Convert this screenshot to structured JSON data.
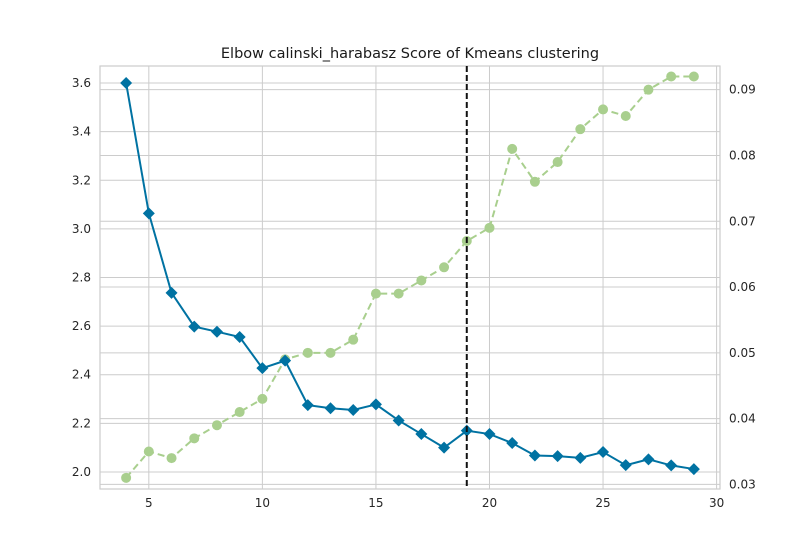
{
  "chart_data": {
    "type": "line",
    "title": "Elbow calinski_harabasz Score of Kmeans clustering",
    "xlabel": "",
    "ylabel": "",
    "y2label": "",
    "xlim": [
      2.85,
      30.15
    ],
    "ylim": [
      1.93,
      3.67
    ],
    "y2lim": [
      0.0293,
      0.0936
    ],
    "x_ticks": [
      5,
      10,
      15,
      20,
      25,
      30
    ],
    "y_ticks": [
      2.0,
      2.2,
      2.4,
      2.6,
      2.8,
      3.0,
      3.2,
      3.4,
      3.6
    ],
    "y2_ticks": [
      0.03,
      0.04,
      0.05,
      0.06,
      0.07,
      0.08,
      0.09
    ],
    "grid": true,
    "elbow_x": 19,
    "colors": {
      "score": "#0072a2",
      "fit_time": "#a9cf8e",
      "elbow": "#111111",
      "grid": "#cccccc",
      "frame": "#cccccc",
      "text": "#262626"
    },
    "x": [
      4,
      5,
      6,
      7,
      8,
      9,
      10,
      11,
      12,
      13,
      14,
      15,
      16,
      17,
      18,
      19,
      20,
      21,
      22,
      23,
      24,
      25,
      26,
      27,
      28,
      29
    ],
    "series": [
      {
        "axis": "left",
        "marker": "diamond",
        "style": "solid",
        "values": [
          3.6,
          3.064,
          2.737,
          2.598,
          2.577,
          2.555,
          2.427,
          2.458,
          2.275,
          2.262,
          2.255,
          2.278,
          2.212,
          2.156,
          2.1,
          2.17,
          2.156,
          2.119,
          2.068,
          2.065,
          2.058,
          2.082,
          2.028,
          2.052,
          2.027,
          2.012
        ]
      },
      {
        "axis": "right",
        "marker": "circle",
        "style": "dashed",
        "values": [
          0.031,
          0.035,
          0.034,
          0.037,
          0.039,
          0.041,
          0.043,
          0.049,
          0.05,
          0.05,
          0.052,
          0.059,
          0.059,
          0.061,
          0.063,
          0.067,
          0.069,
          0.081,
          0.076,
          0.079,
          0.084,
          0.087,
          0.086,
          0.09,
          0.092,
          0.092
        ]
      }
    ]
  }
}
